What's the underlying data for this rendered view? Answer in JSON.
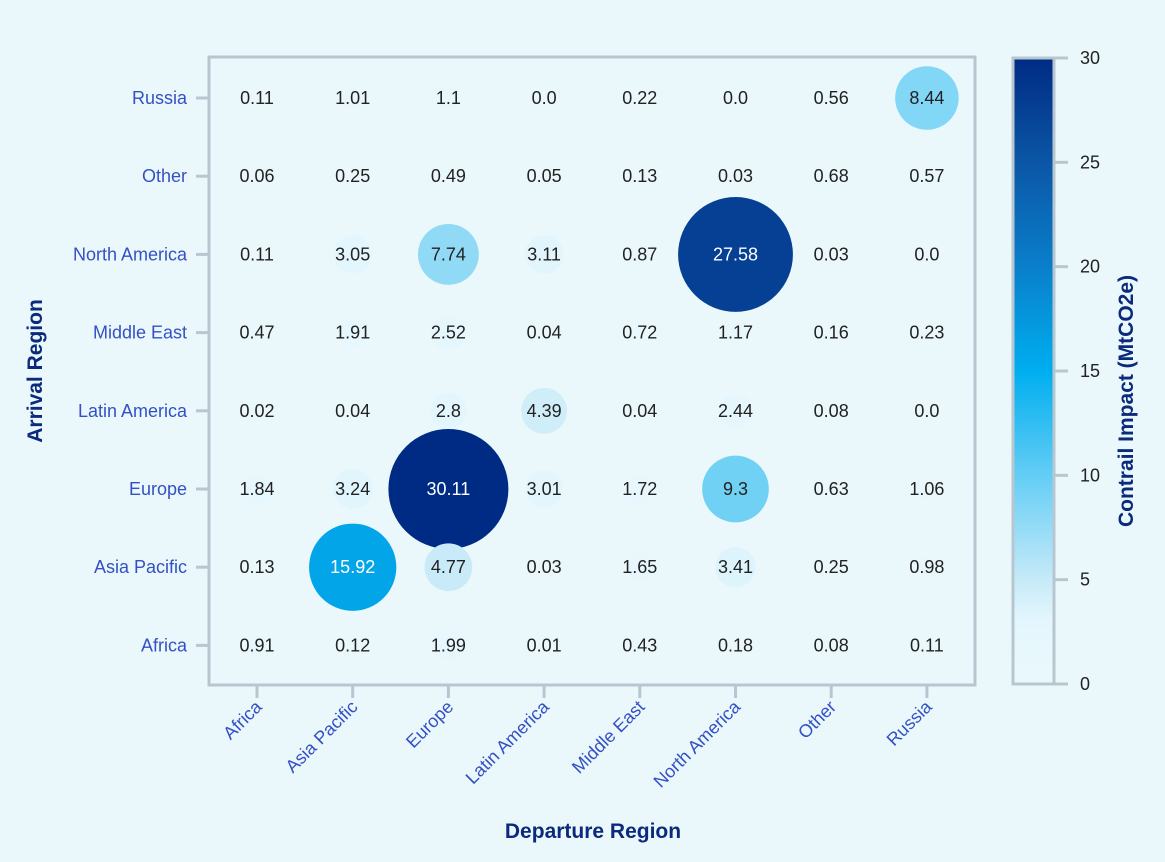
{
  "chart_data": {
    "type": "bubble-heatmap",
    "xlabel": "Departure Region",
    "ylabel": "Arrival Region",
    "x_categories": [
      "Africa",
      "Asia Pacific",
      "Europe",
      "Latin America",
      "Middle East",
      "North America",
      "Other",
      "Russia"
    ],
    "y_categories": [
      "Russia",
      "Other",
      "North America",
      "Middle East",
      "Latin America",
      "Europe",
      "Asia Pacific",
      "Africa"
    ],
    "values": [
      [
        "0.11",
        "1.01",
        "1.1",
        "0.0",
        "0.22",
        "0.0",
        "0.56",
        "8.44"
      ],
      [
        "0.06",
        "0.25",
        "0.49",
        "0.05",
        "0.13",
        "0.03",
        "0.68",
        "0.57"
      ],
      [
        "0.11",
        "3.05",
        "7.74",
        "3.11",
        "0.87",
        "27.58",
        "0.03",
        "0.0"
      ],
      [
        "0.47",
        "1.91",
        "2.52",
        "0.04",
        "0.72",
        "1.17",
        "0.16",
        "0.23"
      ],
      [
        "0.02",
        "0.04",
        "2.8",
        "4.39",
        "0.04",
        "2.44",
        "0.08",
        "0.0"
      ],
      [
        "1.84",
        "3.24",
        "30.11",
        "3.01",
        "1.72",
        "9.3",
        "0.63",
        "1.06"
      ],
      [
        "0.13",
        "15.92",
        "4.77",
        "0.03",
        "1.65",
        "3.41",
        "0.25",
        "0.98"
      ],
      [
        "0.91",
        "0.12",
        "1.99",
        "0.01",
        "0.43",
        "0.18",
        "0.08",
        "0.11"
      ]
    ],
    "colorbar": {
      "title": "Contrail Impact (MtCO2e)",
      "range": [
        0,
        30
      ],
      "ticks": [
        "0",
        "5",
        "10",
        "15",
        "20",
        "25",
        "30"
      ],
      "colorscale": [
        [
          0,
          "#eaf8fc"
        ],
        [
          3,
          "#e4f6fd"
        ],
        [
          5,
          "#c6eaf8"
        ],
        [
          10,
          "#63cdf5"
        ],
        [
          15,
          "#00aeef"
        ],
        [
          20,
          "#0a7fcb"
        ],
        [
          25,
          "#0b56a6"
        ],
        [
          30,
          "#002b84"
        ]
      ]
    },
    "grid": false,
    "legend": "right"
  }
}
